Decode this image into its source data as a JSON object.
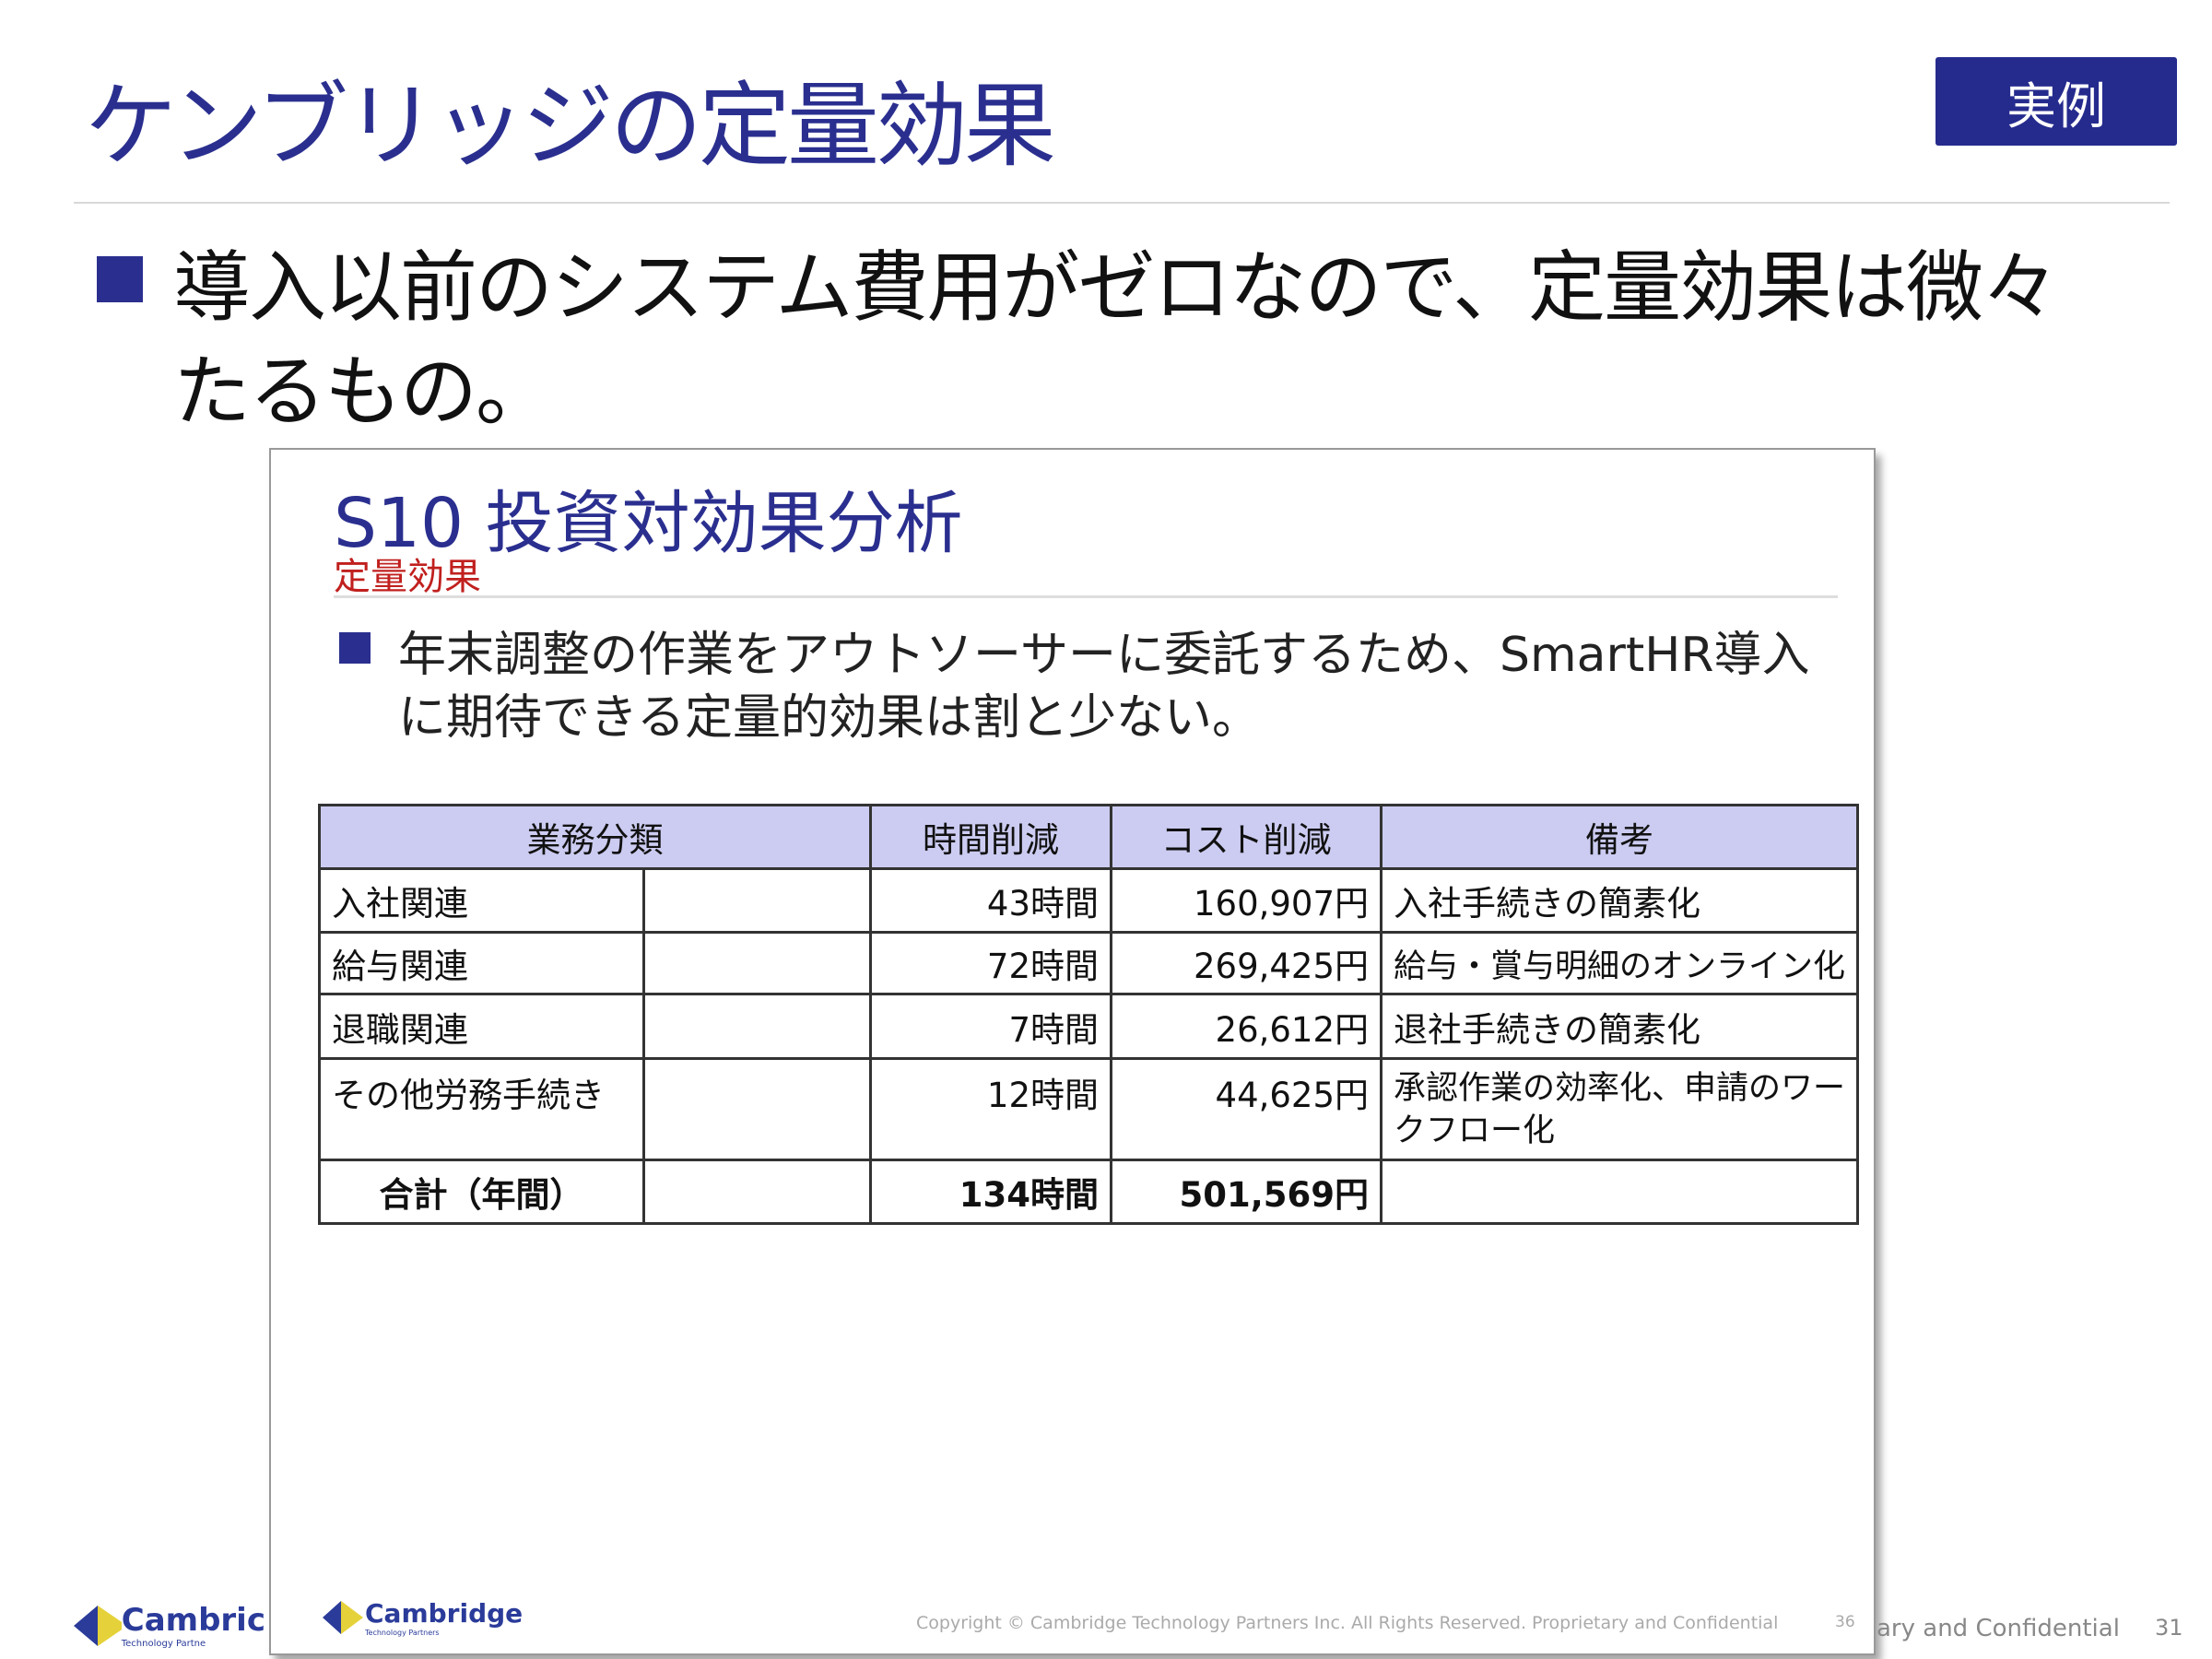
{
  "title": "ケンブリッジの定量効果",
  "badge": "実例",
  "bullet": {
    "line1": "導入以前のシステム費用がゼロなので、定量効果は微々",
    "line2": "たるもの。"
  },
  "slide": {
    "title": "S10 投資対効果分析",
    "subtitle": "定量効果",
    "bullet_line1": "年末調整の作業をアウトソーサーに委託するため、SmartHR導入",
    "bullet_line2": "に期待できる定量的効果は割と少ない。",
    "table": {
      "headers": [
        "業務分類",
        "時間削減",
        "コスト削減",
        "備考"
      ],
      "rows": [
        {
          "category": "入社関連",
          "time": "43時間",
          "cost": "160,907円",
          "note": "入社手続きの簡素化"
        },
        {
          "category": "給与関連",
          "time": "72時間",
          "cost": "269,425円",
          "note": "給与・賞与明細のオンライン化"
        },
        {
          "category": "退職関連",
          "time": "7時間",
          "cost": "26,612円",
          "note": "退社手続きの簡素化"
        },
        {
          "category": "その他労務手続き",
          "time": "12時間",
          "cost": "44,625円",
          "note": "承認作業の効率化、申請のワークフロー化"
        }
      ],
      "total": {
        "category": "合計（年間）",
        "time": "134時間",
        "cost": "501,569円"
      }
    },
    "logo": "Cambridge",
    "logo_tagline": "Technology Partners",
    "copyright": "Copyright © Cambridge Technology Partners Inc.  All Rights Reserved. Proprietary and Confidential",
    "page": "36"
  },
  "footer": {
    "logo": "Cambric",
    "logo_tagline": "Technology Partne",
    "confidential": "ary and Confidential",
    "page": "31"
  },
  "colors": {
    "title": "#2a2f8f",
    "badge": "#252b8d",
    "subtitle": "#c0201e",
    "table_header": "#ccccf2"
  }
}
